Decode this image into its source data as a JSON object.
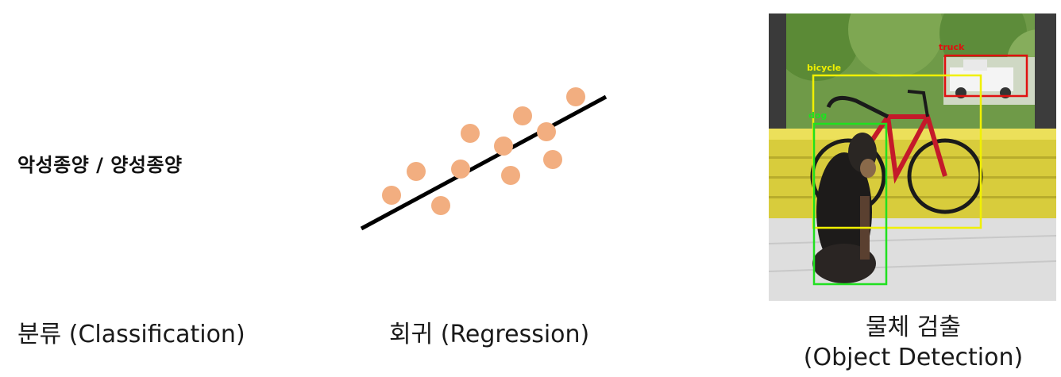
{
  "classification": {
    "sample_text": "악성종양 / 양성종양",
    "caption": "분류 (Classification)"
  },
  "regression": {
    "caption": "회귀 (Regression)",
    "point_color": "#f2ae80",
    "line_color": "#000000"
  },
  "detection": {
    "caption_line1": "물체 검출",
    "caption_line2": "(Object Detection)",
    "labels": {
      "truck": "truck",
      "bicycle": "bicycle",
      "dog": "dog"
    },
    "colors": {
      "truck": "#e01010",
      "bicycle": "#f0f000",
      "dog": "#20e020"
    }
  }
}
